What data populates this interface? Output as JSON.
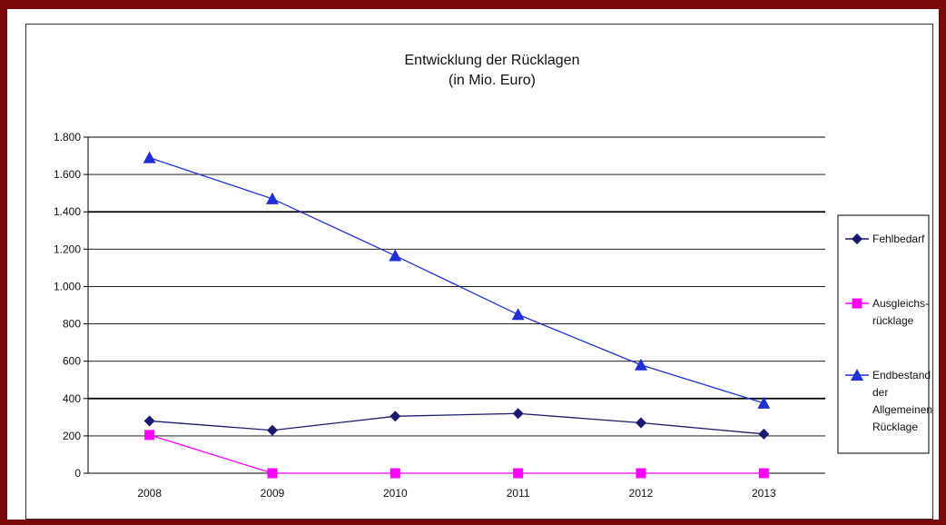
{
  "chart_data": {
    "type": "line",
    "title": "Entwicklung der Rücklagen",
    "subtitle": "(in Mio. Euro)",
    "categories": [
      "2008",
      "2009",
      "2010",
      "2011",
      "2012",
      "2013"
    ],
    "ylim": [
      0,
      1800
    ],
    "yticks": [
      0,
      200,
      400,
      600,
      800,
      1000,
      1200,
      1400,
      1600,
      1800
    ],
    "ytick_labels": [
      "0",
      "200",
      "400",
      "600",
      "800",
      "1.000",
      "1.200",
      "1.400",
      "1.600",
      "1.800"
    ],
    "grid": true,
    "legend_position": "right",
    "series": [
      {
        "name": "Fehlbedarf",
        "legend_lines": [
          "Fehlbedarf"
        ],
        "marker": "diamond",
        "color": "#1a1a6e",
        "values": [
          280,
          230,
          305,
          320,
          270,
          210
        ]
      },
      {
        "name": "Ausgleichs-rücklage",
        "legend_lines": [
          "Ausgleichs-",
          "rücklage"
        ],
        "marker": "square",
        "color": "#ff00ff",
        "values": [
          205,
          0,
          0,
          0,
          0,
          0
        ]
      },
      {
        "name": "Endbestand der Allgemeinen Rücklage",
        "legend_lines": [
          "Endbestand",
          "der",
          "Allgemeinen",
          "Rücklage"
        ],
        "marker": "triangle",
        "color": "#1f2fd6",
        "values": [
          1690,
          1470,
          1165,
          850,
          580,
          375
        ]
      }
    ]
  }
}
